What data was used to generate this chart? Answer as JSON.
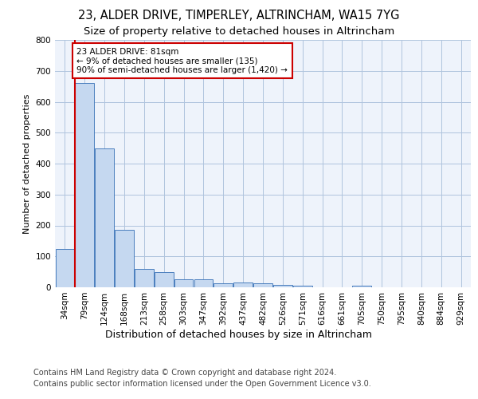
{
  "title1": "23, ALDER DRIVE, TIMPERLEY, ALTRINCHAM, WA15 7YG",
  "title2": "Size of property relative to detached houses in Altrincham",
  "xlabel": "Distribution of detached houses by size in Altrincham",
  "ylabel": "Number of detached properties",
  "footer1": "Contains HM Land Registry data © Crown copyright and database right 2024.",
  "footer2": "Contains public sector information licensed under the Open Government Licence v3.0.",
  "bin_labels": [
    "34sqm",
    "79sqm",
    "124sqm",
    "168sqm",
    "213sqm",
    "258sqm",
    "303sqm",
    "347sqm",
    "392sqm",
    "437sqm",
    "482sqm",
    "526sqm",
    "571sqm",
    "616sqm",
    "661sqm",
    "705sqm",
    "750sqm",
    "795sqm",
    "840sqm",
    "884sqm",
    "929sqm"
  ],
  "bar_values": [
    125,
    660,
    450,
    185,
    60,
    50,
    27,
    27,
    12,
    15,
    12,
    8,
    5,
    0,
    0,
    5,
    0,
    0,
    0,
    0,
    0
  ],
  "bar_color": "#c5d8f0",
  "bar_edge_color": "#4a7ebe",
  "annotation_text": "23 ALDER DRIVE: 81sqm\n← 9% of detached houses are smaller (135)\n90% of semi-detached houses are larger (1,420) →",
  "vline_color": "#cc0000",
  "annotation_box_color": "#ffffff",
  "ylim": [
    0,
    800
  ],
  "grid_color": "#b0c4de",
  "bg_color": "#eef3fb",
  "title1_fontsize": 10.5,
  "title2_fontsize": 9.5,
  "xlabel_fontsize": 9,
  "ylabel_fontsize": 8,
  "footer_fontsize": 7
}
